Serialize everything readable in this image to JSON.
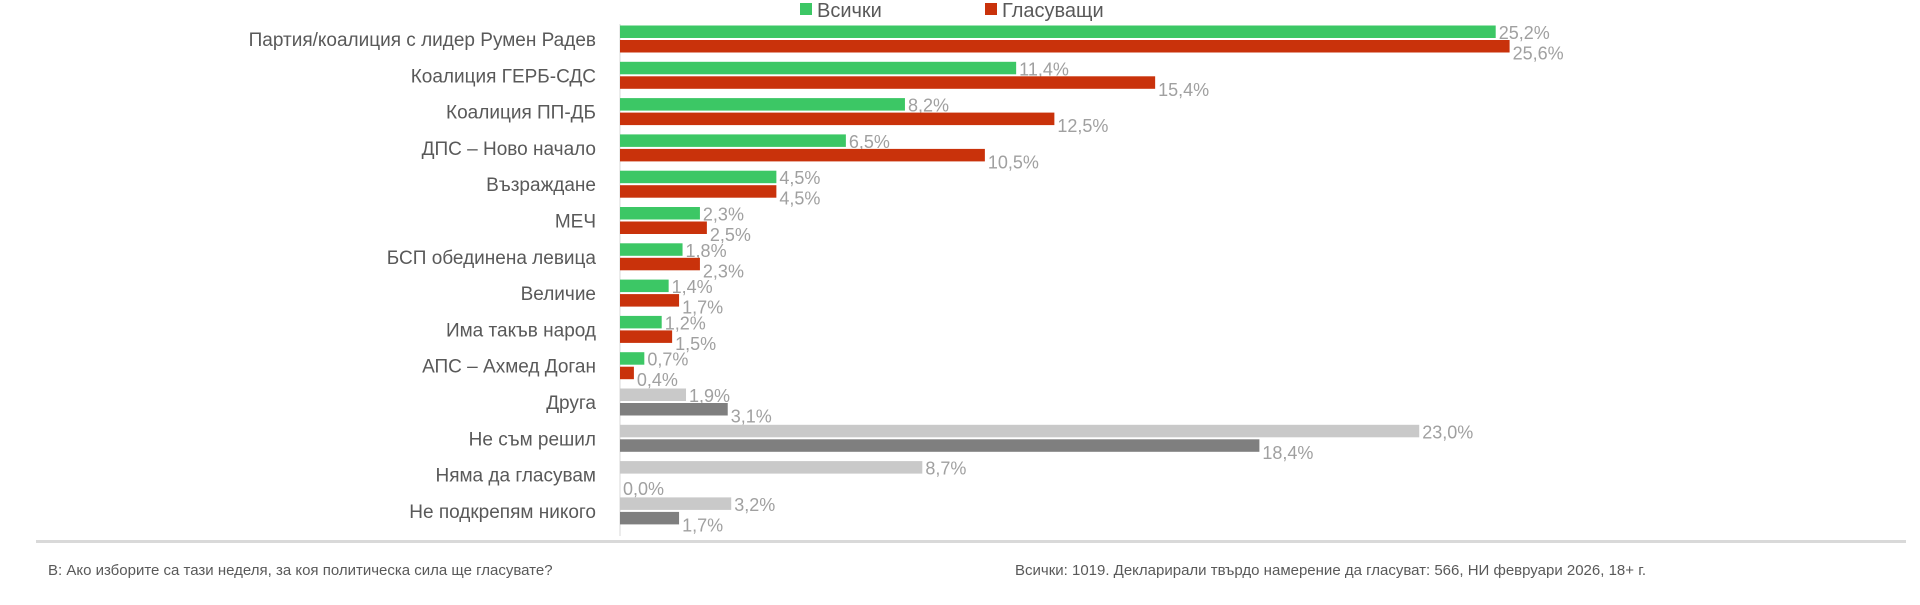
{
  "chart_data": {
    "type": "bar",
    "orientation": "horizontal",
    "title": "",
    "categories": [
      "Партия/коалиция с лидер Румен Радев",
      "Коалиция ГЕРБ-СДС",
      "Коалиция ПП-ДБ",
      "ДПС – Ново начало",
      "Възраждане",
      "МЕЧ",
      "БСП обединена левица",
      "Величие",
      "Има такъв народ",
      "АПС – Ахмед Доган",
      "Друга",
      "Не съм решил",
      "Няма да гласувам",
      "Не подкрепям никого"
    ],
    "series": [
      {
        "name": "Всички",
        "values": [
          25.2,
          11.4,
          8.2,
          6.5,
          4.5,
          2.3,
          1.8,
          1.4,
          1.2,
          0.7,
          1.9,
          23.0,
          8.7,
          3.2
        ],
        "color": "#3cc765",
        "alt_color": "#c9c9c9"
      },
      {
        "name": "Гласуващи",
        "values": [
          25.6,
          15.4,
          12.5,
          10.5,
          4.5,
          2.5,
          2.3,
          1.7,
          1.5,
          0.4,
          3.1,
          18.4,
          0.0,
          1.7
        ],
        "color": "#c9320b",
        "alt_color": "#7f7f7f"
      }
    ],
    "alt_color_from_index": 10,
    "value_labels": [
      [
        "25,2%",
        "11,4%",
        "8,2%",
        "6,5%",
        "4,5%",
        "2,3%",
        "1,8%",
        "1,4%",
        "1,2%",
        "0,7%",
        "1,9%",
        "23,0%",
        "8,7%",
        "3,2%"
      ],
      [
        "25,6%",
        "15,4%",
        "12,5%",
        "10,5%",
        "4,5%",
        "2,5%",
        "2,3%",
        "1,7%",
        "1,5%",
        "0,4%",
        "3,1%",
        "18,4%",
        "0,0%",
        "1,7%"
      ]
    ],
    "legend": [
      "Всички",
      "Гласуващи"
    ],
    "legend_position": "top",
    "xlim": [
      0,
      26
    ],
    "grid": false
  },
  "footer": {
    "question": "В: Ако изборите са тази неделя, за коя политическа сила ще гласувате?",
    "source": "Всички: 1019. Декларирали твърдо намерение да гласуват: 566, НИ февруари 2026, 18+ г."
  }
}
